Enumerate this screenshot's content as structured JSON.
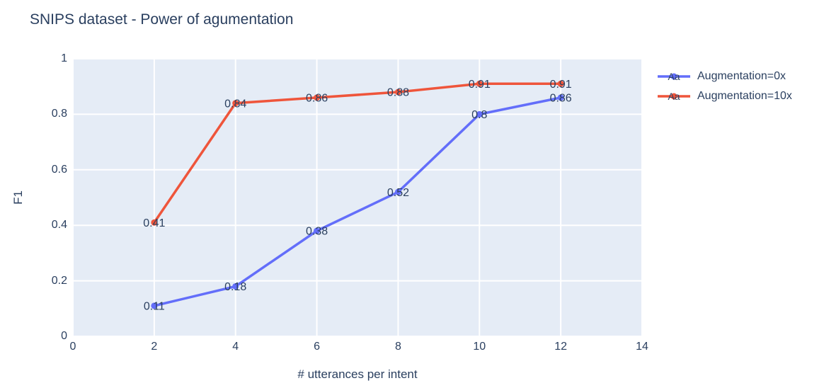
{
  "chart_data": {
    "type": "line",
    "title": "SNIPS dataset - Power of agumentation",
    "xlabel": "# utterances per intent",
    "ylabel": "F1",
    "xlim": [
      0,
      14
    ],
    "ylim": [
      0,
      1
    ],
    "x_ticks": [
      0,
      2,
      4,
      6,
      8,
      10,
      12,
      14
    ],
    "x_tick_labels": [
      "0",
      "2",
      "4",
      "6",
      "8",
      "10",
      "12",
      "14"
    ],
    "y_ticks": [
      0,
      0.2,
      0.4,
      0.6,
      0.8,
      1
    ],
    "y_tick_labels": [
      "0",
      "0.2",
      "0.4",
      "0.6",
      "0.8",
      "1"
    ],
    "grid": true,
    "legend_position": "right",
    "legend_symbol_text": "Aa",
    "plot_background": "#E5ECF6",
    "grid_color": "#FFFFFF",
    "font_color": "#2A3F5F",
    "x": [
      2,
      4,
      6,
      8,
      10,
      12
    ],
    "series": [
      {
        "name": "Augmentation=0x",
        "color": "#636EFA",
        "values": [
          0.11,
          0.18,
          0.38,
          0.52,
          0.8,
          0.86
        ],
        "point_labels": [
          "0.11",
          "0.18",
          "0.38",
          "0.52",
          "0.8",
          "0.86"
        ]
      },
      {
        "name": "Augmentation=10x",
        "color": "#EF553B",
        "values": [
          0.41,
          0.84,
          0.86,
          0.88,
          0.91,
          0.91
        ],
        "point_labels": [
          "0.41",
          "0.84",
          "0.86",
          "0.88",
          "0.91",
          "0.91"
        ]
      }
    ]
  }
}
